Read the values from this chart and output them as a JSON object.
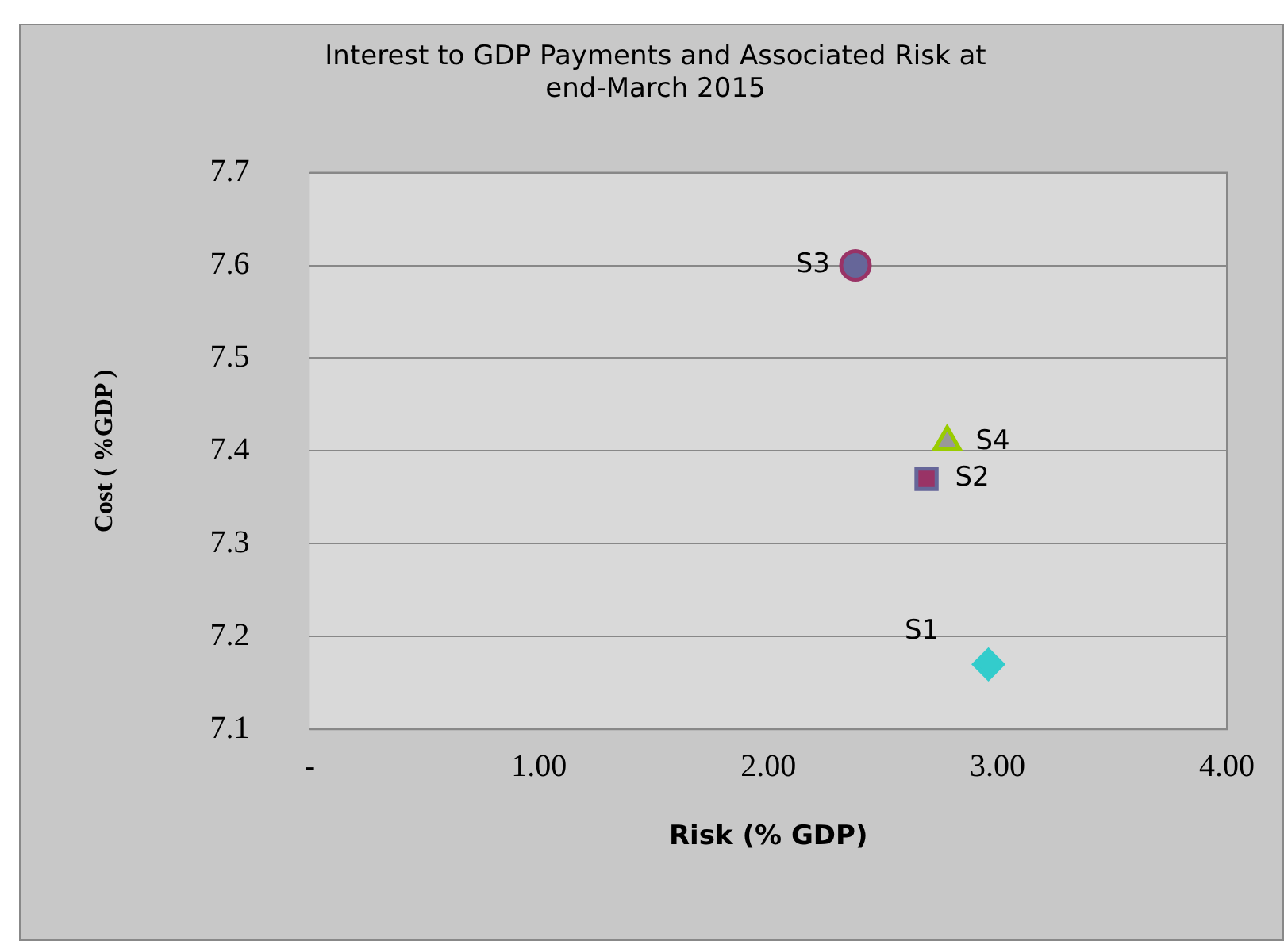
{
  "chart_data": {
    "type": "scatter",
    "title": "Interest to GDP Payments and Associated Risk at end-March 2015",
    "xlabel": "Risk (% GDP)",
    "ylabel": "Cost ( %GDP )",
    "xlim": [
      0,
      4
    ],
    "xticks": [
      {
        "value": 0,
        "label": "-"
      },
      {
        "value": 1,
        "label": "1.00"
      },
      {
        "value": 2,
        "label": "2.00"
      },
      {
        "value": 3,
        "label": "3.00"
      },
      {
        "value": 4,
        "label": "4.00"
      }
    ],
    "ylim": [
      7.1,
      7.7
    ],
    "yticks": [
      7.1,
      7.2,
      7.3,
      7.4,
      7.5,
      7.6,
      7.7
    ],
    "grid": "y",
    "legend": false,
    "series": [
      {
        "name": "S1",
        "color": "#33cccc",
        "marker": "diamond",
        "x": [
          2.96
        ],
        "values": [
          7.17
        ]
      },
      {
        "name": "S2",
        "color": "#993366",
        "marker": "square",
        "x": [
          2.69
        ],
        "values": [
          7.37
        ]
      },
      {
        "name": "S3",
        "color": "#666699",
        "marker": "circle",
        "x": [
          2.38
        ],
        "values": [
          7.6
        ]
      },
      {
        "name": "S4",
        "color": "#999999",
        "marker": "triangle",
        "x": [
          2.78
        ],
        "values": [
          7.41
        ]
      }
    ]
  }
}
